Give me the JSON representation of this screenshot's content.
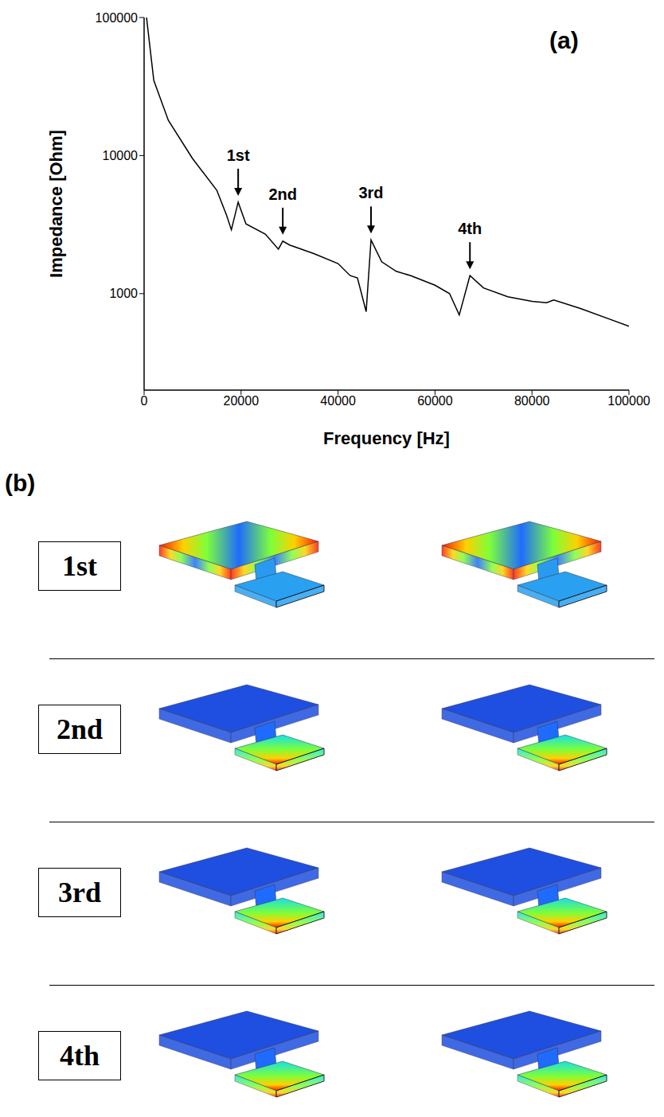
{
  "chart_data": {
    "type": "line",
    "panel": "(a)",
    "x_label": "Frequency [Hz]",
    "y_label": "Impedance [Ohm]",
    "log": "y",
    "grid": false,
    "color": "#000000",
    "x": [
      500,
      2000,
      5000,
      10000,
      15000,
      17000,
      18000,
      19400,
      21000,
      25000,
      27700,
      28600,
      30000,
      35000,
      40000,
      42500,
      44000,
      45800,
      46800,
      49000,
      52000,
      55000,
      60000,
      63000,
      65000,
      67200,
      70000,
      75000,
      80000,
      83000,
      84500,
      90000,
      100000
    ],
    "values": [
      100000,
      35000,
      18000,
      9500,
      5600,
      3700,
      2900,
      4600,
      3200,
      2700,
      2100,
      2400,
      2250,
      1950,
      1650,
      1350,
      1300,
      740,
      2450,
      1700,
      1450,
      1350,
      1150,
      1000,
      700,
      1350,
      1100,
      950,
      880,
      860,
      900,
      780,
      580
    ],
    "xlim": [
      0,
      100000
    ],
    "xticks": [
      0,
      20000,
      40000,
      60000,
      80000,
      100000
    ],
    "ylim": [
      200,
      100000
    ],
    "yticks": [
      1000,
      10000,
      100000
    ],
    "annotations": [
      {
        "text": "1st",
        "x": 19400
      },
      {
        "text": "2nd",
        "x": 28600
      },
      {
        "text": "3rd",
        "x": 46800
      },
      {
        "text": "4th",
        "x": 67200
      }
    ]
  },
  "panel_b": {
    "panel": "(b)",
    "rows": [
      "1st",
      "2nd",
      "3rd",
      "4th"
    ]
  }
}
